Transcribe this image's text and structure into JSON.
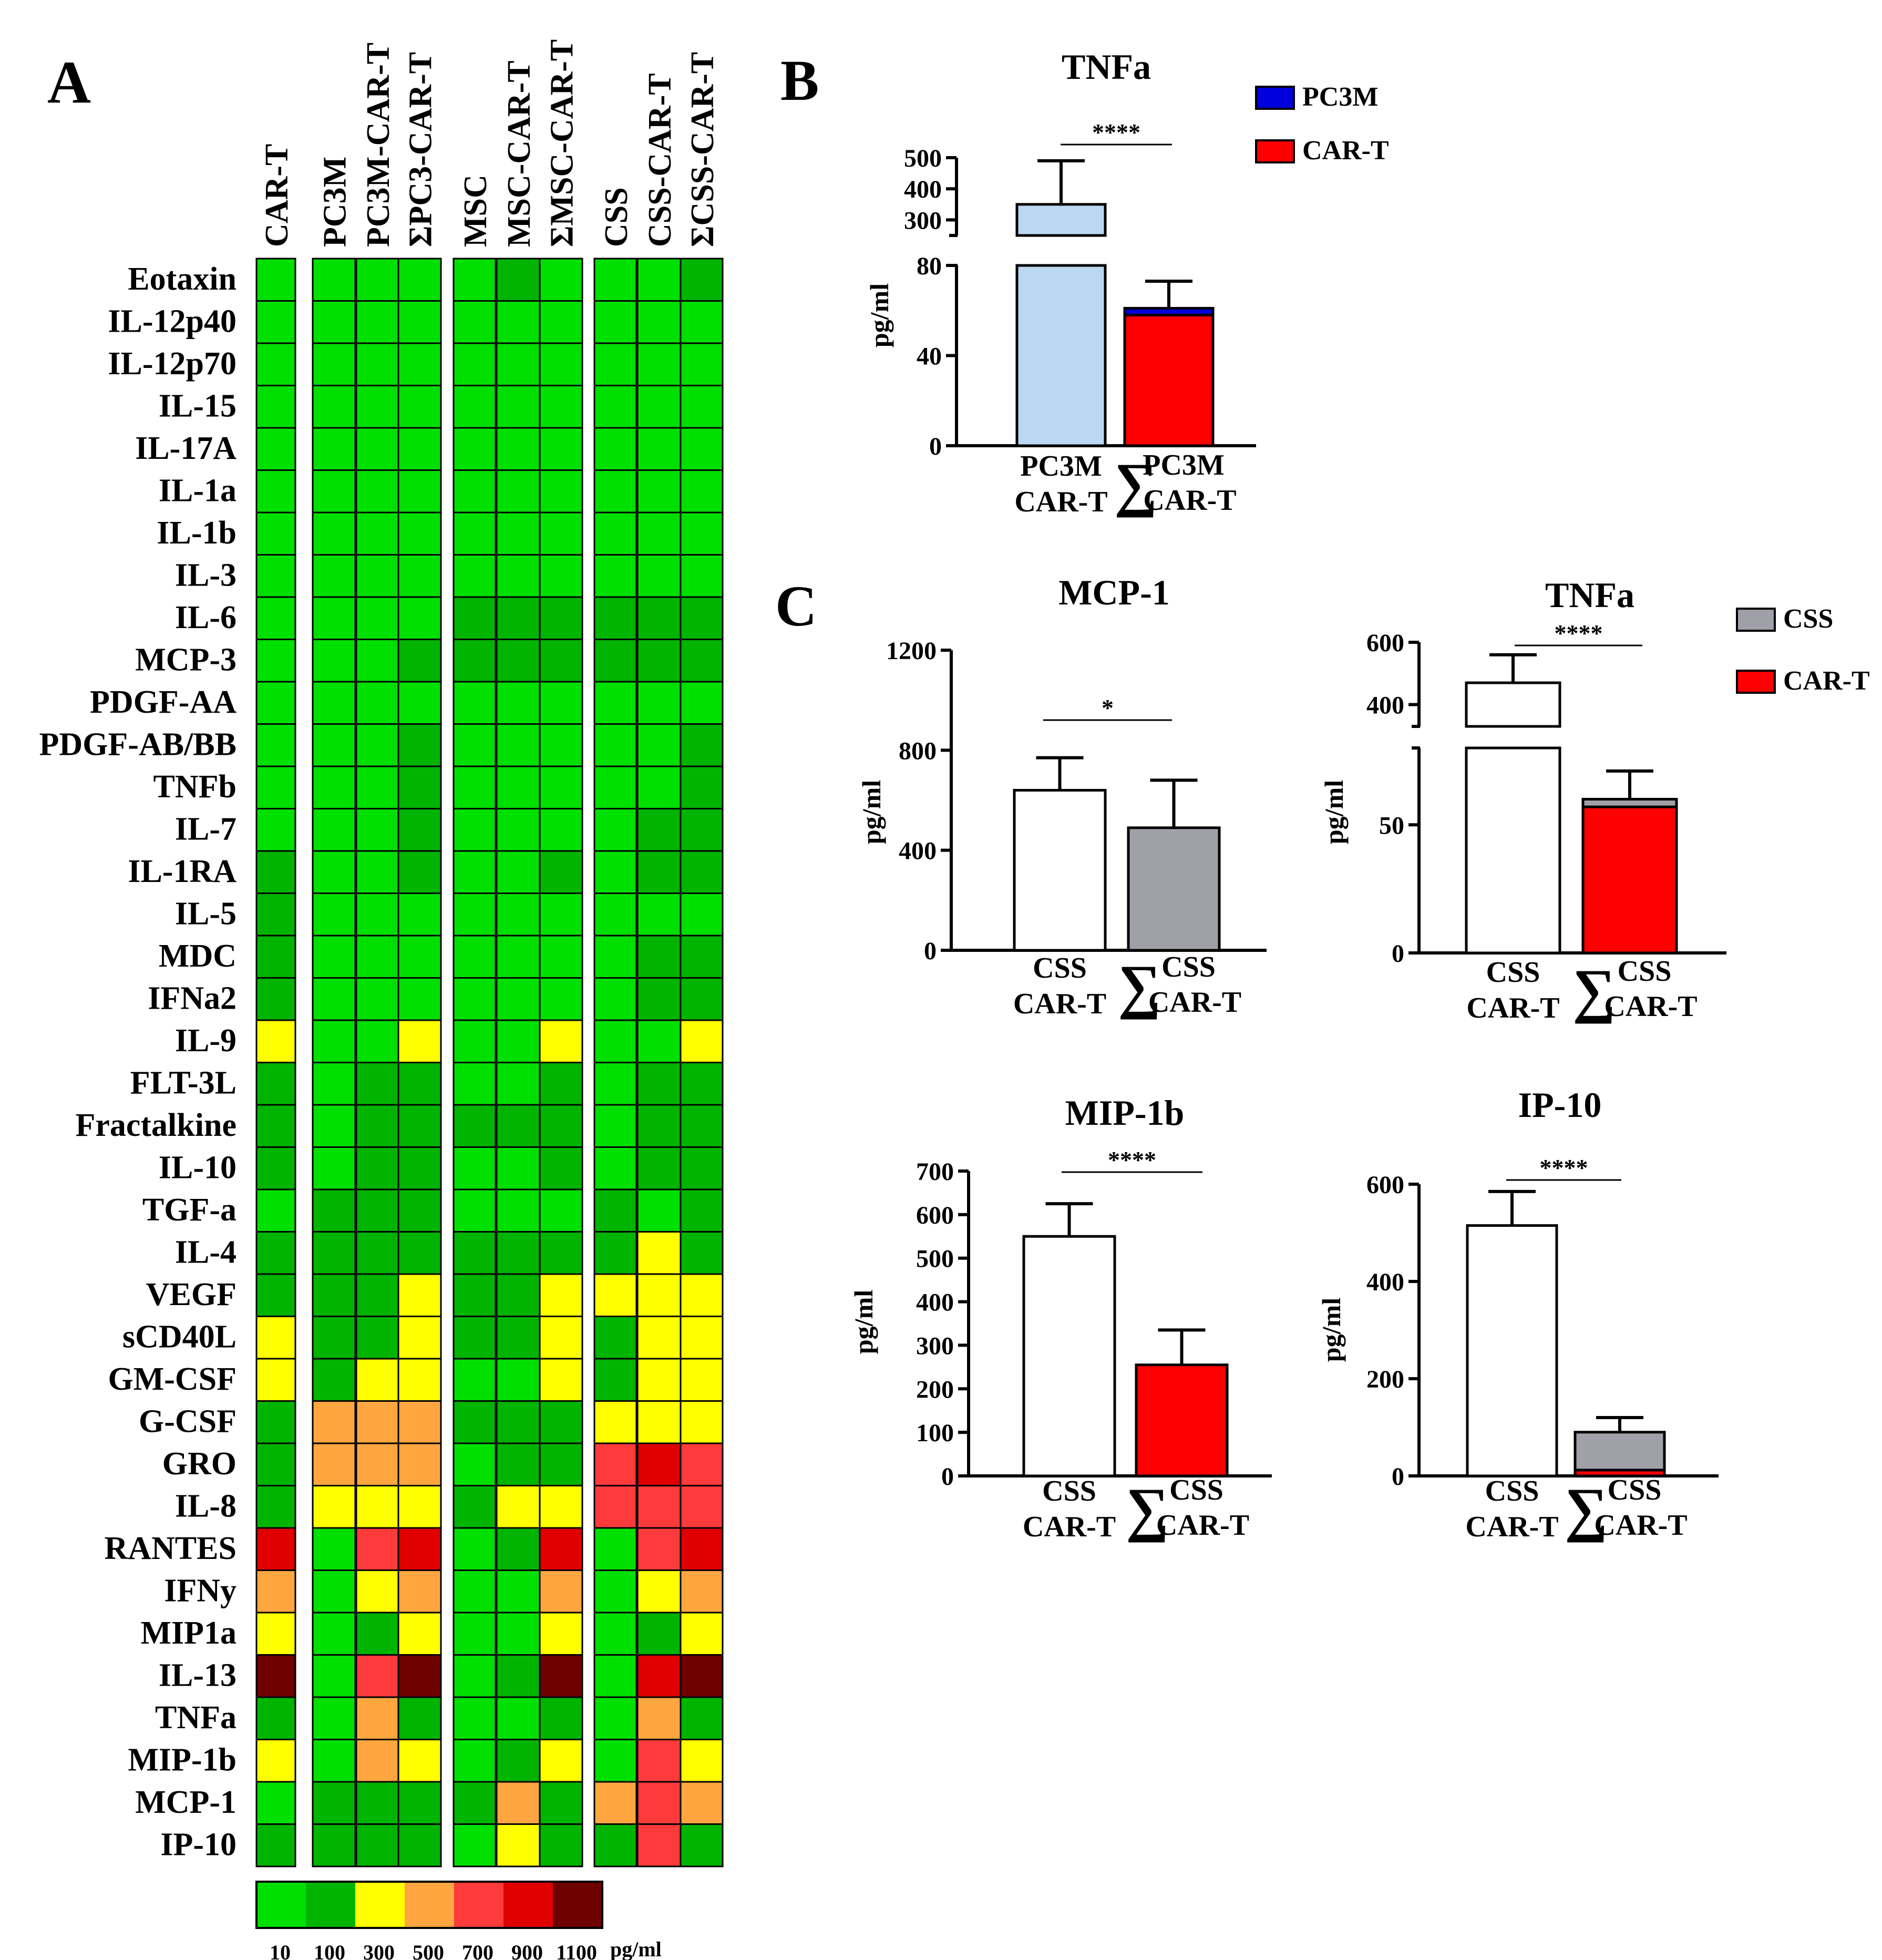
{
  "panels": {
    "A": "A",
    "B": "B",
    "C": "C"
  },
  "colors": {
    "scale": [
      "#00E000",
      "#00B400",
      "#FFFF00",
      "#FFA640",
      "#FF3A3A",
      "#E00000",
      "#6E0000"
    ],
    "axis": "#000000",
    "bar_red": "#FF0000",
    "bar_grey": "#A0A0A8",
    "bar_lightblue": "#BBD8F2",
    "bar_blue": "#0000DD",
    "bar_white": "#FFFFFF"
  },
  "chart_data": [
    {
      "id": "A",
      "type": "heatmap",
      "columns": [
        "CAR-T",
        "PC3M",
        "PC3M-CAR-T",
        "ΣPC3-CAR-T",
        "MSC",
        "MSC-CAR-T",
        "ΣMSC-CAR-T",
        "CSS",
        "CSS-CAR-T",
        "ΣCSS-CAR-T"
      ],
      "column_groups": [
        [
          0
        ],
        [
          1,
          2,
          3
        ],
        [
          4,
          5,
          6
        ],
        [
          7,
          8,
          9
        ]
      ],
      "rows": [
        "Eotaxin",
        "IL-12p40",
        "IL-12p70",
        "IL-15",
        "IL-17A",
        "IL-1a",
        "IL-1b",
        "IL-3",
        "IL-6",
        "MCP-3",
        "PDGF-AA",
        "PDGF-AB/BB",
        "TNFb",
        "IL-7",
        "IL-1RA",
        "IL-5",
        "MDC",
        "IFNa2",
        "IL-9",
        "FLT-3L",
        "Fractalkine",
        "IL-10",
        "TGF-a",
        "IL-4",
        "VEGF",
        "sCD40L",
        "GM-CSF",
        "G-CSF",
        "GRO",
        "IL-8",
        "RANTES",
        "IFNy",
        "MIP1a",
        "IL-13",
        "TNFa",
        "MIP-1b",
        "MCP-1",
        "IP-10"
      ],
      "levels": [
        [
          0,
          0,
          0,
          0,
          0,
          1,
          0,
          0,
          0,
          1
        ],
        [
          0,
          0,
          0,
          0,
          0,
          0,
          0,
          0,
          0,
          0
        ],
        [
          0,
          0,
          0,
          0,
          0,
          0,
          0,
          0,
          0,
          0
        ],
        [
          0,
          0,
          0,
          0,
          0,
          0,
          0,
          0,
          0,
          0
        ],
        [
          0,
          0,
          0,
          0,
          0,
          0,
          0,
          0,
          0,
          0
        ],
        [
          0,
          0,
          0,
          0,
          0,
          0,
          0,
          0,
          0,
          0
        ],
        [
          0,
          0,
          0,
          0,
          0,
          0,
          0,
          0,
          0,
          0
        ],
        [
          0,
          0,
          0,
          0,
          0,
          0,
          0,
          0,
          0,
          0
        ],
        [
          0,
          0,
          0,
          0,
          1,
          1,
          1,
          1,
          1,
          1
        ],
        [
          0,
          0,
          0,
          1,
          1,
          1,
          1,
          1,
          1,
          1
        ],
        [
          0,
          0,
          0,
          0,
          0,
          0,
          0,
          0,
          0,
          0
        ],
        [
          0,
          0,
          0,
          1,
          0,
          0,
          0,
          0,
          0,
          1
        ],
        [
          0,
          0,
          0,
          1,
          0,
          0,
          0,
          0,
          0,
          1
        ],
        [
          0,
          0,
          0,
          1,
          0,
          0,
          0,
          0,
          1,
          1
        ],
        [
          1,
          0,
          0,
          1,
          0,
          0,
          1,
          0,
          1,
          1
        ],
        [
          1,
          0,
          0,
          0,
          0,
          0,
          0,
          0,
          0,
          0
        ],
        [
          1,
          0,
          0,
          0,
          0,
          0,
          0,
          0,
          1,
          1
        ],
        [
          1,
          0,
          0,
          0,
          0,
          0,
          0,
          0,
          1,
          1
        ],
        [
          2,
          0,
          0,
          2,
          0,
          0,
          2,
          0,
          0,
          2
        ],
        [
          1,
          0,
          1,
          1,
          0,
          0,
          1,
          0,
          1,
          1
        ],
        [
          1,
          0,
          1,
          1,
          1,
          1,
          1,
          0,
          1,
          1
        ],
        [
          1,
          0,
          1,
          1,
          0,
          0,
          1,
          0,
          1,
          1
        ],
        [
          0,
          1,
          1,
          1,
          0,
          0,
          0,
          1,
          0,
          1
        ],
        [
          1,
          1,
          1,
          1,
          1,
          1,
          1,
          1,
          2,
          1
        ],
        [
          1,
          1,
          1,
          2,
          1,
          1,
          2,
          2,
          2,
          2
        ],
        [
          2,
          1,
          1,
          2,
          1,
          1,
          2,
          1,
          2,
          2
        ],
        [
          2,
          1,
          2,
          2,
          0,
          0,
          2,
          1,
          2,
          2
        ],
        [
          1,
          3,
          3,
          3,
          1,
          1,
          1,
          2,
          2,
          2
        ],
        [
          1,
          3,
          3,
          3,
          0,
          1,
          1,
          4,
          5,
          4
        ],
        [
          1,
          2,
          2,
          2,
          1,
          2,
          2,
          4,
          4,
          4
        ],
        [
          5,
          0,
          4,
          5,
          0,
          1,
          5,
          0,
          4,
          5
        ],
        [
          3,
          0,
          2,
          3,
          0,
          0,
          3,
          0,
          2,
          3
        ],
        [
          2,
          0,
          1,
          2,
          0,
          0,
          2,
          0,
          1,
          2
        ],
        [
          6,
          0,
          4,
          6,
          0,
          1,
          6,
          0,
          5,
          6
        ],
        [
          1,
          0,
          3,
          1,
          0,
          0,
          1,
          0,
          3,
          1
        ],
        [
          2,
          0,
          3,
          2,
          0,
          1,
          2,
          0,
          4,
          2
        ],
        [
          0,
          1,
          1,
          1,
          1,
          3,
          1,
          3,
          4,
          3
        ],
        [
          1,
          1,
          1,
          1,
          0,
          2,
          1,
          1,
          4,
          1
        ]
      ],
      "colorbar": {
        "ticks": [
          "10",
          "100",
          "300",
          "500",
          "700",
          "900",
          "1100"
        ],
        "unit": "pg/ml"
      }
    },
    {
      "id": "B",
      "type": "bar",
      "title": "TNFa",
      "ylabel": "pg/ml",
      "broken_axis": {
        "lower": [
          0,
          80
        ],
        "upper": [
          250,
          500
        ]
      },
      "yticks_lower": [
        "0",
        "40",
        "80"
      ],
      "yticks_upper": [
        "300",
        "400",
        "500"
      ],
      "categories": [
        [
          "PC3M",
          "CAR-T"
        ],
        [
          "PC3M",
          "CAR-T"
        ]
      ],
      "sum_marker": [
        false,
        true
      ],
      "bars": [
        {
          "segments": [
            {
              "series": "combined",
              "value": 350,
              "color": "#BBD8F2"
            }
          ],
          "error": 140
        },
        {
          "segments": [
            {
              "series": "CAR-T",
              "value": 58,
              "color": "#FF0000"
            },
            {
              "series": "PC3M",
              "value": 3,
              "color": "#0000DD"
            }
          ],
          "error": 12
        }
      ],
      "significance": "****",
      "legend": [
        {
          "label": "PC3M",
          "color": "#0000DD"
        },
        {
          "label": "CAR-T",
          "color": "#FF0000"
        }
      ]
    },
    {
      "id": "C1",
      "type": "bar",
      "title": "MCP-1",
      "ylabel": "pg/ml",
      "ylim": [
        0,
        1200
      ],
      "yticks": [
        "0",
        "400",
        "800",
        "1200"
      ],
      "categories": [
        [
          "CSS",
          "CAR-T"
        ],
        [
          "CSS",
          "CAR-T"
        ]
      ],
      "sum_marker": [
        false,
        true
      ],
      "bars": [
        {
          "segments": [
            {
              "series": "combined",
              "value": 640,
              "color": "#FFFFFF"
            }
          ],
          "error": 130
        },
        {
          "segments": [
            {
              "series": "CSS",
              "value": 490,
              "color": "#A0A0A8"
            }
          ],
          "error": 190
        }
      ],
      "significance": "*"
    },
    {
      "id": "C2",
      "type": "bar",
      "title": "TNFa",
      "ylabel": "pg/ml",
      "broken_axis": {
        "lower": [
          0,
          80
        ],
        "upper": [
          330,
          600
        ]
      },
      "yticks_lower": [
        "0",
        "50"
      ],
      "yticks_upper": [
        "400",
        "600"
      ],
      "categories": [
        [
          "CSS",
          "CAR-T"
        ],
        [
          "CSS",
          "CAR-T"
        ]
      ],
      "sum_marker": [
        false,
        true
      ],
      "bars": [
        {
          "segments": [
            {
              "series": "combined",
              "value": 470,
              "color": "#FFFFFF"
            }
          ],
          "error": 90
        },
        {
          "segments": [
            {
              "series": "CAR-T",
              "value": 57,
              "color": "#FF0000"
            },
            {
              "series": "CSS",
              "value": 3,
              "color": "#A0A0A8"
            }
          ],
          "error": 11
        }
      ],
      "significance": "****",
      "legend": [
        {
          "label": "CSS",
          "color": "#A0A0A8"
        },
        {
          "label": "CAR-T",
          "color": "#FF0000"
        }
      ]
    },
    {
      "id": "C3",
      "type": "bar",
      "title": "MIP-1b",
      "ylabel": "pg/ml",
      "ylim": [
        0,
        700
      ],
      "yticks": [
        "0",
        "100",
        "200",
        "300",
        "400",
        "500",
        "600",
        "700"
      ],
      "categories": [
        [
          "CSS",
          "CAR-T"
        ],
        [
          "CSS",
          "CAR-T"
        ]
      ],
      "sum_marker": [
        false,
        true
      ],
      "bars": [
        {
          "segments": [
            {
              "series": "combined",
              "value": 550,
              "color": "#FFFFFF"
            }
          ],
          "error": 75
        },
        {
          "segments": [
            {
              "series": "CAR-T",
              "value": 255,
              "color": "#FF0000"
            }
          ],
          "error": 80
        }
      ],
      "significance": "****"
    },
    {
      "id": "C4",
      "type": "bar",
      "title": "IP-10",
      "ylabel": "pg/ml",
      "ylim": [
        0,
        600
      ],
      "yticks": [
        "0",
        "200",
        "400",
        "600"
      ],
      "categories": [
        [
          "CSS",
          "CAR-T"
        ],
        [
          "CSS",
          "CAR-T"
        ]
      ],
      "sum_marker": [
        false,
        true
      ],
      "bars": [
        {
          "segments": [
            {
              "series": "combined",
              "value": 515,
              "color": "#FFFFFF"
            }
          ],
          "error": 70
        },
        {
          "segments": [
            {
              "series": "CAR-T",
              "value": 12,
              "color": "#FF0000"
            },
            {
              "series": "CSS",
              "value": 78,
              "color": "#A0A0A8"
            }
          ],
          "error": 30
        }
      ],
      "significance": "****"
    }
  ]
}
